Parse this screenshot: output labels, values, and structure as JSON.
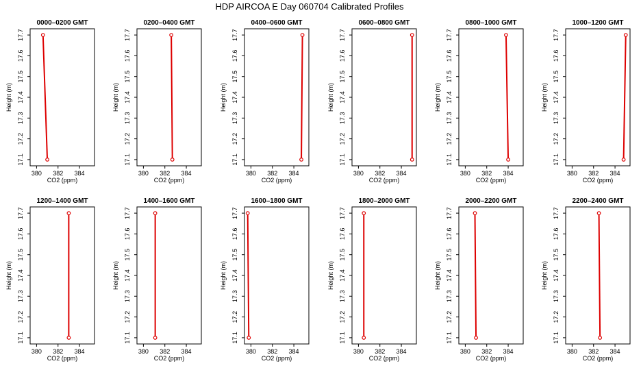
{
  "figure": {
    "title": "HDP  AIRCOA E  Day 060704  Calibrated Profiles"
  },
  "chart_data": [
    {
      "type": "line",
      "title": "0000–0200 GMT",
      "xlabel": "CO2 (ppm)",
      "ylabel": "Height (m)",
      "xlim": [
        379.4,
        385.4
      ],
      "ylim": [
        17.07,
        17.73
      ],
      "xticks": [
        380,
        382,
        384
      ],
      "yticks": [
        17.1,
        17.2,
        17.3,
        17.4,
        17.5,
        17.6,
        17.7
      ],
      "grid": false,
      "color": "#dd0000",
      "points": [
        {
          "x": 380.6,
          "y": 17.7
        },
        {
          "x": 381.0,
          "y": 17.1
        }
      ]
    },
    {
      "type": "line",
      "title": "0200–0400 GMT",
      "xlabel": "CO2 (ppm)",
      "ylabel": "Height (m)",
      "xlim": [
        379.4,
        385.4
      ],
      "ylim": [
        17.07,
        17.73
      ],
      "xticks": [
        380,
        382,
        384
      ],
      "yticks": [
        17.1,
        17.2,
        17.3,
        17.4,
        17.5,
        17.6,
        17.7
      ],
      "grid": false,
      "color": "#dd0000",
      "points": [
        {
          "x": 382.6,
          "y": 17.7
        },
        {
          "x": 382.7,
          "y": 17.1
        }
      ]
    },
    {
      "type": "line",
      "title": "0400–0600 GMT",
      "xlabel": "CO2 (ppm)",
      "ylabel": "Height (m)",
      "xlim": [
        379.4,
        385.4
      ],
      "ylim": [
        17.07,
        17.73
      ],
      "xticks": [
        380,
        382,
        384
      ],
      "yticks": [
        17.1,
        17.2,
        17.3,
        17.4,
        17.5,
        17.6,
        17.7
      ],
      "grid": false,
      "color": "#dd0000",
      "points": [
        {
          "x": 384.8,
          "y": 17.7
        },
        {
          "x": 384.7,
          "y": 17.1
        }
      ]
    },
    {
      "type": "line",
      "title": "0600–0800 GMT",
      "xlabel": "CO2 (ppm)",
      "ylabel": "Height (m)",
      "xlim": [
        379.4,
        385.4
      ],
      "ylim": [
        17.07,
        17.73
      ],
      "xticks": [
        380,
        382,
        384
      ],
      "yticks": [
        17.1,
        17.2,
        17.3,
        17.4,
        17.5,
        17.6,
        17.7
      ],
      "grid": false,
      "color": "#dd0000",
      "points": [
        {
          "x": 385.0,
          "y": 17.7
        },
        {
          "x": 385.0,
          "y": 17.1
        }
      ]
    },
    {
      "type": "line",
      "title": "0800–1000 GMT",
      "xlabel": "CO2 (ppm)",
      "ylabel": "Height (m)",
      "xlim": [
        379.4,
        385.4
      ],
      "ylim": [
        17.07,
        17.73
      ],
      "xticks": [
        380,
        382,
        384
      ],
      "yticks": [
        17.1,
        17.2,
        17.3,
        17.4,
        17.5,
        17.6,
        17.7
      ],
      "grid": false,
      "color": "#dd0000",
      "points": [
        {
          "x": 383.8,
          "y": 17.7
        },
        {
          "x": 384.0,
          "y": 17.1
        }
      ]
    },
    {
      "type": "line",
      "title": "1000–1200 GMT",
      "xlabel": "CO2 (ppm)",
      "ylabel": "Height (m)",
      "xlim": [
        379.4,
        385.4
      ],
      "ylim": [
        17.07,
        17.73
      ],
      "xticks": [
        380,
        382,
        384
      ],
      "yticks": [
        17.1,
        17.2,
        17.3,
        17.4,
        17.5,
        17.6,
        17.7
      ],
      "grid": false,
      "color": "#dd0000",
      "points": [
        {
          "x": 385.0,
          "y": 17.7
        },
        {
          "x": 384.8,
          "y": 17.1
        }
      ]
    },
    {
      "type": "line",
      "title": "1200–1400 GMT",
      "xlabel": "CO2 (ppm)",
      "ylabel": "Height (m)",
      "xlim": [
        379.4,
        385.4
      ],
      "ylim": [
        17.07,
        17.73
      ],
      "xticks": [
        380,
        382,
        384
      ],
      "yticks": [
        17.1,
        17.2,
        17.3,
        17.4,
        17.5,
        17.6,
        17.7
      ],
      "grid": false,
      "color": "#dd0000",
      "points": [
        {
          "x": 383.0,
          "y": 17.7
        },
        {
          "x": 383.0,
          "y": 17.1
        }
      ]
    },
    {
      "type": "line",
      "title": "1400–1600 GMT",
      "xlabel": "CO2 (ppm)",
      "ylabel": "Height (m)",
      "xlim": [
        379.4,
        385.4
      ],
      "ylim": [
        17.07,
        17.73
      ],
      "xticks": [
        380,
        382,
        384
      ],
      "yticks": [
        17.1,
        17.2,
        17.3,
        17.4,
        17.5,
        17.6,
        17.7
      ],
      "grid": false,
      "color": "#dd0000",
      "points": [
        {
          "x": 381.1,
          "y": 17.7
        },
        {
          "x": 381.1,
          "y": 17.1
        }
      ]
    },
    {
      "type": "line",
      "title": "1600–1800 GMT",
      "xlabel": "CO2 (ppm)",
      "ylabel": "Height (m)",
      "xlim": [
        379.4,
        385.4
      ],
      "ylim": [
        17.07,
        17.73
      ],
      "xticks": [
        380,
        382,
        384
      ],
      "yticks": [
        17.1,
        17.2,
        17.3,
        17.4,
        17.5,
        17.6,
        17.7
      ],
      "grid": false,
      "color": "#dd0000",
      "points": [
        {
          "x": 379.7,
          "y": 17.7
        },
        {
          "x": 379.8,
          "y": 17.1
        }
      ]
    },
    {
      "type": "line",
      "title": "1800–2000 GMT",
      "xlabel": "CO2 (ppm)",
      "ylabel": "Height (m)",
      "xlim": [
        379.4,
        385.4
      ],
      "ylim": [
        17.07,
        17.73
      ],
      "xticks": [
        380,
        382,
        384
      ],
      "yticks": [
        17.1,
        17.2,
        17.3,
        17.4,
        17.5,
        17.6,
        17.7
      ],
      "grid": false,
      "color": "#dd0000",
      "points": [
        {
          "x": 380.5,
          "y": 17.7
        },
        {
          "x": 380.5,
          "y": 17.1
        }
      ]
    },
    {
      "type": "line",
      "title": "2000–2200 GMT",
      "xlabel": "CO2 (ppm)",
      "ylabel": "Height (m)",
      "xlim": [
        379.4,
        385.4
      ],
      "ylim": [
        17.07,
        17.73
      ],
      "xticks": [
        380,
        382,
        384
      ],
      "yticks": [
        17.1,
        17.2,
        17.3,
        17.4,
        17.5,
        17.6,
        17.7
      ],
      "grid": false,
      "color": "#dd0000",
      "points": [
        {
          "x": 380.9,
          "y": 17.7
        },
        {
          "x": 381.0,
          "y": 17.1
        }
      ]
    },
    {
      "type": "line",
      "title": "2200–2400 GMT",
      "xlabel": "CO2 (ppm)",
      "ylabel": "Height (m)",
      "xlim": [
        379.4,
        385.4
      ],
      "ylim": [
        17.07,
        17.73
      ],
      "xticks": [
        380,
        382,
        384
      ],
      "yticks": [
        17.1,
        17.2,
        17.3,
        17.4,
        17.5,
        17.6,
        17.7
      ],
      "grid": false,
      "color": "#dd0000",
      "points": [
        {
          "x": 382.5,
          "y": 17.7
        },
        {
          "x": 382.6,
          "y": 17.1
        }
      ]
    }
  ]
}
